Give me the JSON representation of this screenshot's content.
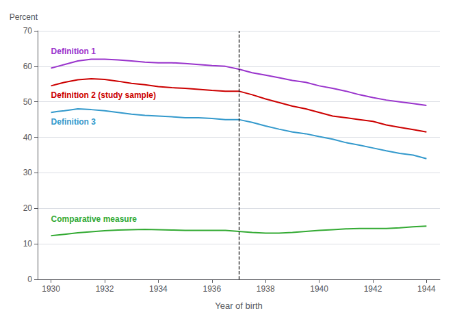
{
  "chart_data": {
    "type": "line",
    "xlabel": "Year of birth",
    "ylabel": "Percent",
    "x": [
      1930,
      1930.25,
      1930.5,
      1931,
      1931.5,
      1932,
      1932.5,
      1933,
      1933.5,
      1934,
      1934.5,
      1935,
      1935.5,
      1936,
      1936.5,
      1937,
      1937.5,
      1938,
      1938.5,
      1939,
      1939.5,
      1940,
      1940.5,
      1941,
      1941.5,
      1942,
      1942.5,
      1943,
      1943.5,
      1944
    ],
    "series": [
      {
        "name": "Definition 1",
        "color": "#9933CC",
        "values": [
          59.5,
          60.0,
          60.5,
          61.5,
          62.0,
          62.0,
          61.8,
          61.5,
          61.2,
          61.0,
          61.0,
          60.8,
          60.5,
          60.2,
          60.0,
          59.2,
          58.2,
          57.5,
          56.8,
          56.0,
          55.5,
          54.5,
          53.8,
          53.0,
          52.0,
          51.2,
          50.5,
          50.0,
          49.5,
          49.0
        ]
      },
      {
        "name": "Definition 2 (study sample)",
        "color": "#CC0000",
        "values": [
          54.5,
          55.0,
          55.5,
          56.2,
          56.5,
          56.3,
          55.8,
          55.2,
          54.8,
          54.3,
          54.0,
          53.8,
          53.5,
          53.2,
          53.0,
          53.0,
          52.0,
          50.8,
          49.8,
          48.8,
          48.0,
          47.0,
          46.0,
          45.5,
          45.0,
          44.5,
          43.5,
          42.8,
          42.2,
          41.5
        ]
      },
      {
        "name": "Definition 3",
        "color": "#3399CC",
        "values": [
          47.0,
          47.3,
          47.5,
          48.0,
          47.8,
          47.5,
          47.0,
          46.5,
          46.2,
          46.0,
          45.8,
          45.5,
          45.5,
          45.3,
          45.0,
          45.0,
          44.2,
          43.2,
          42.3,
          41.5,
          41.0,
          40.2,
          39.5,
          38.5,
          37.8,
          37.0,
          36.2,
          35.5,
          35.0,
          34.0
        ]
      },
      {
        "name": "Comparative measure",
        "color": "#33AA33",
        "values": [
          12.3,
          12.5,
          12.7,
          13.1,
          13.4,
          13.7,
          13.9,
          14.0,
          14.1,
          14.0,
          13.9,
          13.8,
          13.8,
          13.8,
          13.8,
          13.5,
          13.2,
          13.0,
          13.0,
          13.2,
          13.5,
          13.8,
          14.0,
          14.2,
          14.3,
          14.3,
          14.3,
          14.5,
          14.8,
          15.0
        ]
      }
    ],
    "vline": 1937,
    "xlim": [
      1929.5,
      1944.5
    ],
    "xticks": [
      1930,
      1932,
      1934,
      1936,
      1938,
      1940,
      1942,
      1944
    ],
    "ylim": [
      0,
      70
    ],
    "yticks": [
      0,
      10,
      20,
      30,
      40,
      50,
      60,
      70
    ],
    "grid": true
  }
}
